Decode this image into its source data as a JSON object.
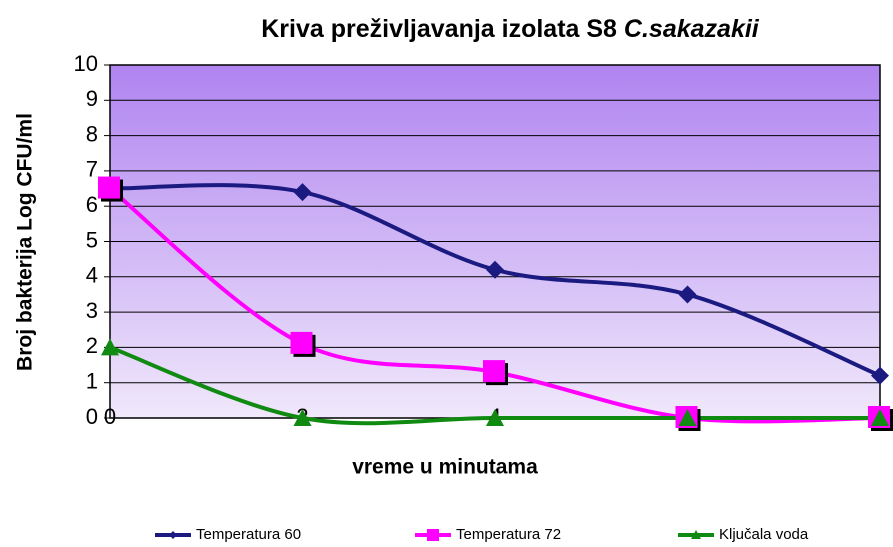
{
  "chart_data": {
    "type": "line",
    "title": "Kriva preživljavanja izolata S8",
    "title_species": "C.sakazakii",
    "xlabel": "vreme u minutama",
    "ylabel": "Broj bakterija Log CFU/ml",
    "x": [
      0,
      2,
      4,
      6,
      8
    ],
    "xlim": [
      0,
      8
    ],
    "xticks": [
      0,
      2,
      4,
      6,
      8
    ],
    "ylim": [
      0,
      10
    ],
    "yticks": [
      0,
      1,
      2,
      3,
      4,
      5,
      6,
      7,
      8,
      9,
      10
    ],
    "grid": true,
    "smooth": true,
    "legend": "bottom",
    "series": [
      {
        "name": "Temperatura 60",
        "color": "#1a1a80",
        "marker": "diamond",
        "values": [
          6.5,
          6.4,
          4.2,
          3.5,
          1.2
        ]
      },
      {
        "name": "Temperatura 72",
        "color": "#ff00ff",
        "marker": "square",
        "values": [
          6.5,
          2.1,
          1.3,
          0,
          0
        ]
      },
      {
        "name": "Ključala voda",
        "color": "#108a10",
        "marker": "triangle",
        "values": [
          2,
          0,
          0,
          0,
          0
        ]
      }
    ]
  }
}
